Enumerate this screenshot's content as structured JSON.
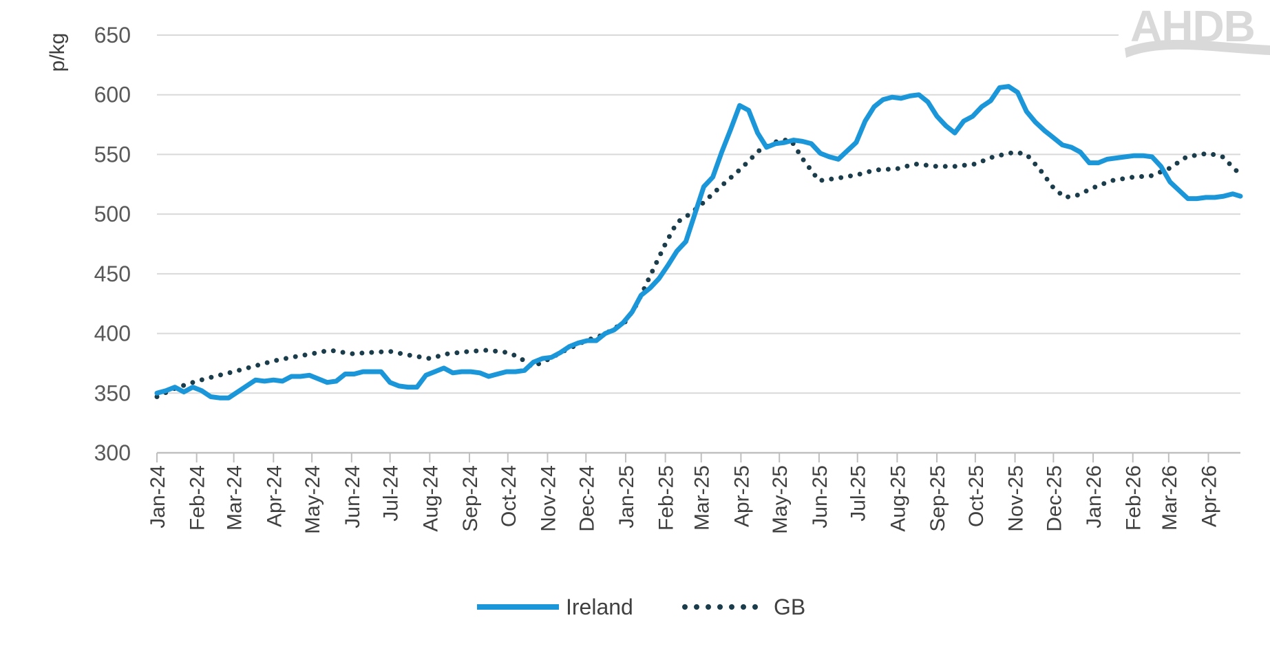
{
  "logo": {
    "text": "AHDB"
  },
  "chart_data": {
    "type": "line",
    "title": "",
    "xlabel": "",
    "ylabel": "p/kg",
    "ylim": [
      300,
      650
    ],
    "yticks": [
      300,
      350,
      400,
      450,
      500,
      550,
      600,
      650
    ],
    "grid": true,
    "legend_position": "bottom-center",
    "x_start": "2024-01-01",
    "x_end": "2026-04-26",
    "xtick_labels": [
      {
        "date": "2024-01-01",
        "label": "Jan-24"
      },
      {
        "date": "2024-02-01",
        "label": "Feb-24"
      },
      {
        "date": "2024-03-01",
        "label": "Mar-24"
      },
      {
        "date": "2024-04-01",
        "label": "Apr-24"
      },
      {
        "date": "2024-05-01",
        "label": "May-24"
      },
      {
        "date": "2024-06-01",
        "label": "Jun-24"
      },
      {
        "date": "2024-07-01",
        "label": "Jul-24"
      },
      {
        "date": "2024-08-01",
        "label": "Aug-24"
      },
      {
        "date": "2024-09-01",
        "label": "Sep-24"
      },
      {
        "date": "2024-10-01",
        "label": "Oct-24"
      },
      {
        "date": "2024-11-01",
        "label": "Nov-24"
      },
      {
        "date": "2024-12-01",
        "label": "Dec-24"
      },
      {
        "date": "2025-01-01",
        "label": "Jan-25"
      },
      {
        "date": "2025-02-01",
        "label": "Feb-25"
      },
      {
        "date": "2025-03-01",
        "label": "Mar-25"
      },
      {
        "date": "2025-04-01",
        "label": "Apr-25"
      },
      {
        "date": "2025-05-01",
        "label": "May-25"
      },
      {
        "date": "2025-06-01",
        "label": "Jun-25"
      },
      {
        "date": "2025-07-01",
        "label": "Jul-25"
      },
      {
        "date": "2025-08-01",
        "label": "Aug-25"
      },
      {
        "date": "2025-09-01",
        "label": "Sep-25"
      },
      {
        "date": "2025-10-01",
        "label": "Oct-25"
      },
      {
        "date": "2025-11-01",
        "label": "Nov-25"
      },
      {
        "date": "2025-12-01",
        "label": "Dec-25"
      },
      {
        "date": "2026-01-01",
        "label": "Jan-26"
      },
      {
        "date": "2026-02-01",
        "label": "Feb-26"
      },
      {
        "date": "2026-03-01",
        "label": "Mar-26"
      },
      {
        "date": "2026-04-01",
        "label": "Apr-26"
      }
    ],
    "series": [
      {
        "name": "Ireland",
        "color": "#1b96d8",
        "style": "solid",
        "points": [
          [
            "2024-01-01",
            350
          ],
          [
            "2024-01-08",
            352
          ],
          [
            "2024-01-15",
            355
          ],
          [
            "2024-01-22",
            351
          ],
          [
            "2024-01-29",
            355
          ],
          [
            "2024-02-05",
            352
          ],
          [
            "2024-02-12",
            347
          ],
          [
            "2024-02-19",
            346
          ],
          [
            "2024-02-26",
            346
          ],
          [
            "2024-03-04",
            351
          ],
          [
            "2024-03-11",
            356
          ],
          [
            "2024-03-18",
            361
          ],
          [
            "2024-03-25",
            360
          ],
          [
            "2024-04-01",
            361
          ],
          [
            "2024-04-08",
            360
          ],
          [
            "2024-04-15",
            364
          ],
          [
            "2024-04-22",
            364
          ],
          [
            "2024-04-29",
            365
          ],
          [
            "2024-05-06",
            362
          ],
          [
            "2024-05-13",
            359
          ],
          [
            "2024-05-20",
            360
          ],
          [
            "2024-05-27",
            366
          ],
          [
            "2024-06-03",
            366
          ],
          [
            "2024-06-10",
            368
          ],
          [
            "2024-06-17",
            368
          ],
          [
            "2024-06-24",
            368
          ],
          [
            "2024-07-01",
            359
          ],
          [
            "2024-07-08",
            356
          ],
          [
            "2024-07-15",
            355
          ],
          [
            "2024-07-22",
            355
          ],
          [
            "2024-07-29",
            365
          ],
          [
            "2024-08-05",
            368
          ],
          [
            "2024-08-12",
            371
          ],
          [
            "2024-08-19",
            367
          ],
          [
            "2024-08-26",
            368
          ],
          [
            "2024-09-02",
            368
          ],
          [
            "2024-09-09",
            367
          ],
          [
            "2024-09-16",
            364
          ],
          [
            "2024-09-23",
            366
          ],
          [
            "2024-09-30",
            368
          ],
          [
            "2024-10-07",
            368
          ],
          [
            "2024-10-14",
            369
          ],
          [
            "2024-10-21",
            376
          ],
          [
            "2024-10-28",
            379
          ],
          [
            "2024-11-04",
            380
          ],
          [
            "2024-11-11",
            384
          ],
          [
            "2024-11-18",
            389
          ],
          [
            "2024-11-25",
            392
          ],
          [
            "2024-12-02",
            394
          ],
          [
            "2024-12-09",
            394
          ],
          [
            "2024-12-16",
            400
          ],
          [
            "2024-12-23",
            403
          ],
          [
            "2024-12-30",
            409
          ],
          [
            "2025-01-06",
            418
          ],
          [
            "2025-01-13",
            432
          ],
          [
            "2025-01-20",
            438
          ],
          [
            "2025-01-27",
            446
          ],
          [
            "2025-02-03",
            457
          ],
          [
            "2025-02-10",
            469
          ],
          [
            "2025-02-17",
            477
          ],
          [
            "2025-02-24",
            500
          ],
          [
            "2025-03-03",
            523
          ],
          [
            "2025-03-10",
            531
          ],
          [
            "2025-03-17",
            552
          ],
          [
            "2025-03-24",
            571
          ],
          [
            "2025-03-31",
            591
          ],
          [
            "2025-04-07",
            587
          ],
          [
            "2025-04-14",
            568
          ],
          [
            "2025-04-21",
            556
          ],
          [
            "2025-04-28",
            559
          ],
          [
            "2025-05-05",
            560
          ],
          [
            "2025-05-12",
            562
          ],
          [
            "2025-05-19",
            561
          ],
          [
            "2025-05-26",
            559
          ],
          [
            "2025-06-02",
            551
          ],
          [
            "2025-06-09",
            548
          ],
          [
            "2025-06-16",
            546
          ],
          [
            "2025-06-23",
            553
          ],
          [
            "2025-06-30",
            560
          ],
          [
            "2025-07-07",
            578
          ],
          [
            "2025-07-14",
            590
          ],
          [
            "2025-07-21",
            596
          ],
          [
            "2025-07-28",
            598
          ],
          [
            "2025-08-04",
            597
          ],
          [
            "2025-08-11",
            599
          ],
          [
            "2025-08-18",
            600
          ],
          [
            "2025-08-25",
            594
          ],
          [
            "2025-09-01",
            582
          ],
          [
            "2025-09-08",
            574
          ],
          [
            "2025-09-15",
            568
          ],
          [
            "2025-09-22",
            578
          ],
          [
            "2025-09-29",
            582
          ],
          [
            "2025-10-06",
            590
          ],
          [
            "2025-10-13",
            595
          ],
          [
            "2025-10-20",
            606
          ],
          [
            "2025-10-27",
            607
          ],
          [
            "2025-11-03",
            602
          ],
          [
            "2025-11-10",
            586
          ],
          [
            "2025-11-17",
            577
          ],
          [
            "2025-11-24",
            570
          ],
          [
            "2025-12-01",
            564
          ],
          [
            "2025-12-08",
            558
          ],
          [
            "2025-12-15",
            556
          ],
          [
            "2025-12-22",
            552
          ],
          [
            "2025-12-29",
            543
          ],
          [
            "2026-01-05",
            543
          ],
          [
            "2026-01-12",
            546
          ],
          [
            "2026-01-19",
            547
          ],
          [
            "2026-01-26",
            548
          ],
          [
            "2026-02-02",
            549
          ],
          [
            "2026-02-09",
            549
          ],
          [
            "2026-02-16",
            548
          ],
          [
            "2026-02-23",
            540
          ],
          [
            "2026-03-02",
            527
          ],
          [
            "2026-03-09",
            520
          ],
          [
            "2026-03-16",
            513
          ],
          [
            "2026-03-23",
            513
          ],
          [
            "2026-03-30",
            514
          ],
          [
            "2026-04-06",
            514
          ],
          [
            "2026-04-13",
            515
          ],
          [
            "2026-04-20",
            517
          ],
          [
            "2026-04-26",
            515
          ]
        ]
      },
      {
        "name": "GB",
        "color": "#1b3c4a",
        "style": "dotted",
        "points": [
          [
            "2024-01-01",
            347
          ],
          [
            "2024-01-15",
            354
          ],
          [
            "2024-02-01",
            360
          ],
          [
            "2024-02-15",
            364
          ],
          [
            "2024-03-01",
            368
          ],
          [
            "2024-03-15",
            372
          ],
          [
            "2024-04-01",
            377
          ],
          [
            "2024-04-15",
            380
          ],
          [
            "2024-05-01",
            383
          ],
          [
            "2024-05-15",
            386
          ],
          [
            "2024-06-01",
            383
          ],
          [
            "2024-06-15",
            384
          ],
          [
            "2024-07-01",
            385
          ],
          [
            "2024-07-15",
            382
          ],
          [
            "2024-08-01",
            379
          ],
          [
            "2024-08-15",
            383
          ],
          [
            "2024-09-01",
            385
          ],
          [
            "2024-09-15",
            386
          ],
          [
            "2024-10-01",
            384
          ],
          [
            "2024-10-10",
            380
          ],
          [
            "2024-10-20",
            372
          ],
          [
            "2024-11-01",
            378
          ],
          [
            "2024-11-15",
            386
          ],
          [
            "2024-12-01",
            394
          ],
          [
            "2024-12-15",
            399
          ],
          [
            "2025-01-01",
            410
          ],
          [
            "2025-01-10",
            425
          ],
          [
            "2025-01-20",
            448
          ],
          [
            "2025-02-01",
            475
          ],
          [
            "2025-02-10",
            493
          ],
          [
            "2025-02-20",
            500
          ],
          [
            "2025-03-01",
            508
          ],
          [
            "2025-03-15",
            522
          ],
          [
            "2025-04-01",
            538
          ],
          [
            "2025-04-15",
            553
          ],
          [
            "2025-05-01",
            562
          ],
          [
            "2025-05-10",
            562
          ],
          [
            "2025-05-20",
            545
          ],
          [
            "2025-06-01",
            528
          ],
          [
            "2025-06-15",
            530
          ],
          [
            "2025-07-01",
            533
          ],
          [
            "2025-07-15",
            537
          ],
          [
            "2025-08-01",
            538
          ],
          [
            "2025-08-15",
            542
          ],
          [
            "2025-09-01",
            540
          ],
          [
            "2025-09-15",
            540
          ],
          [
            "2025-10-01",
            542
          ],
          [
            "2025-10-15",
            548
          ],
          [
            "2025-11-01",
            552
          ],
          [
            "2025-11-10",
            550
          ],
          [
            "2025-11-20",
            538
          ],
          [
            "2025-12-01",
            522
          ],
          [
            "2025-12-10",
            514
          ],
          [
            "2025-12-20",
            516
          ],
          [
            "2026-01-01",
            522
          ],
          [
            "2026-01-15",
            528
          ],
          [
            "2026-02-01",
            531
          ],
          [
            "2026-02-15",
            532
          ],
          [
            "2026-03-01",
            538
          ],
          [
            "2026-03-15",
            548
          ],
          [
            "2026-04-01",
            551
          ],
          [
            "2026-04-12",
            548
          ],
          [
            "2026-04-26",
            533
          ]
        ]
      }
    ]
  }
}
